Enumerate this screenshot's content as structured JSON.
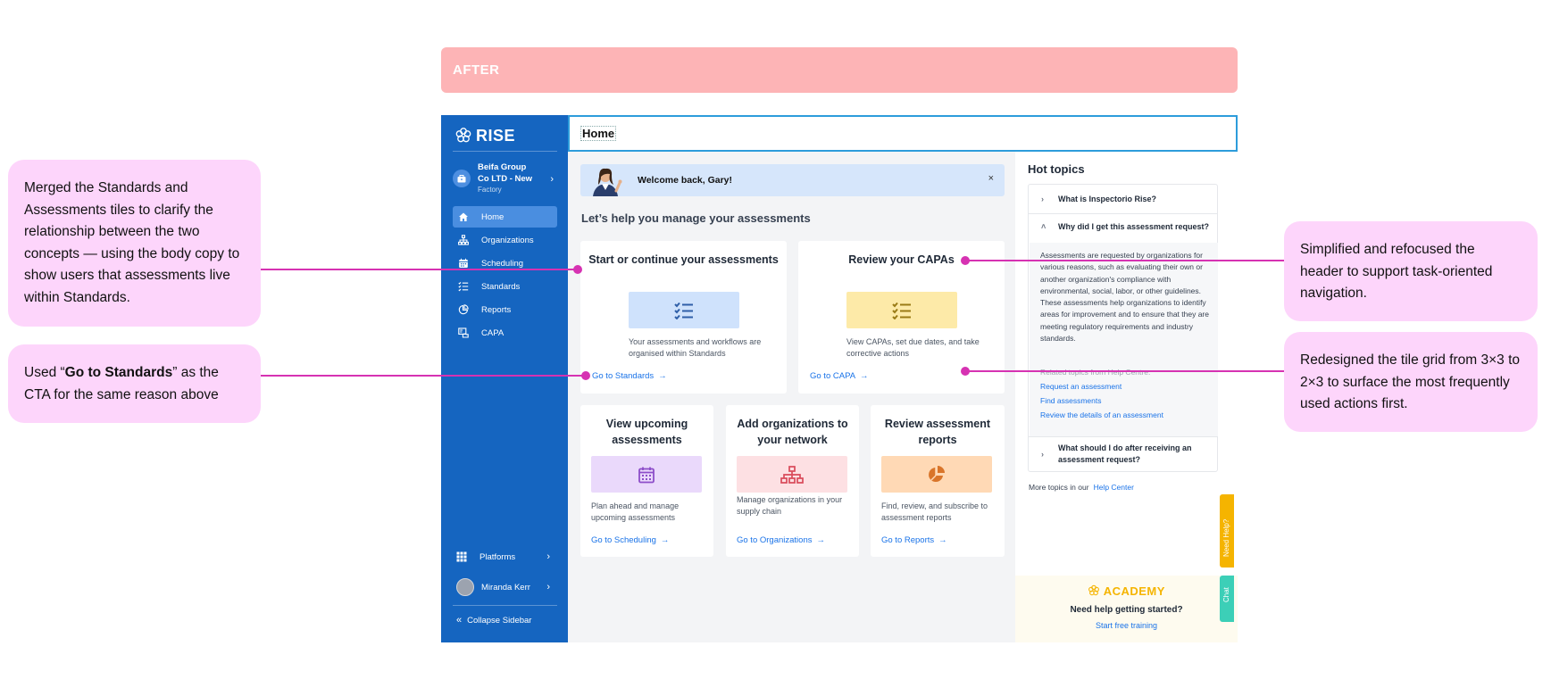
{
  "banner": {
    "label": "AFTER"
  },
  "sidebar": {
    "logo": "RISE",
    "org": {
      "name": "Beifa Group Co LTD - New",
      "type": "Factory"
    },
    "items": [
      {
        "label": "Home",
        "icon": "home-icon"
      },
      {
        "label": "Organizations",
        "icon": "hierarchy-icon"
      },
      {
        "label": "Scheduling",
        "icon": "calendar-icon"
      },
      {
        "label": "Standards",
        "icon": "checklist-icon"
      },
      {
        "label": "Reports",
        "icon": "pie-chart-icon"
      },
      {
        "label": "CAPA",
        "icon": "capa-icon"
      }
    ],
    "platforms": "Platforms",
    "user": "Miranda Kerr",
    "collapse": "Collapse Sidebar"
  },
  "header": {
    "title": "Home"
  },
  "welcome": {
    "text": "Welcome back, Gary!",
    "close": "×"
  },
  "main": {
    "section_title": "Let’s help you manage your assessments",
    "tiles": [
      {
        "title": "Start or continue your assessments",
        "desc": "Your assessments and workflows are organised within Standards",
        "link": "Go to Standards",
        "art_color": "#cfe2fc",
        "icon_color": "#2f5fa8"
      },
      {
        "title": "Review your CAPAs",
        "desc": "View CAPAs, set due dates, and take corrective actions",
        "link": "Go to CAPA",
        "art_color": "#fdeaa8",
        "icon_color": "#9a7b16"
      },
      {
        "title": "View upcoming assessments",
        "desc": "Plan ahead and manage upcoming assessments",
        "link": "Go to Scheduling",
        "art_color": "#ead9fb",
        "icon_color": "#8d4ec9"
      },
      {
        "title": "Add organizations to your network",
        "desc": "Manage organizations in your supply chain",
        "link": "Go to Organizations",
        "art_color": "#fde0e3",
        "icon_color": "#d94a5a"
      },
      {
        "title": "Review assessment reports",
        "desc": "Find, review, and subscribe to assessment reports",
        "link": "Go to Reports",
        "art_color": "#ffd9b5",
        "icon_color": "#d9752a"
      }
    ]
  },
  "hot_topics": {
    "title": "Hot topics",
    "q1": "What is Inspectorio Rise?",
    "q2": "Why did I get this assessment request?",
    "answer": "Assessments are requested by organizations for various reasons, such as evaluating their own or another organization's compliance with environmental, social, labor, or other guidelines. These assessments help organizations to identify areas for improvement and to ensure that they are meeting regulatory requirements and industry standards.",
    "related_label": "Related topics from Help Centre:",
    "related": [
      "Request an assessment",
      "Find assessments",
      "Review the details of an assessment"
    ],
    "q3": "What should I do after receiving an assessment request?",
    "more_prefix": "More topics in our",
    "more_link": "Help Center"
  },
  "academy": {
    "logo": "ACADEMY",
    "question": "Need help getting started?",
    "link": "Start free training"
  },
  "side_tabs": {
    "help": "Need Help?",
    "chat": "Chat"
  },
  "annotations": {
    "left1": "Merged the Standards and Assessments tiles to clarify the relationship between the two concepts — using the body copy to show users that assessments live within Standards.",
    "left2_pre": "Used “",
    "left2_bold": "Go to Standards",
    "left2_post": "” as the CTA for the same reason above",
    "right1": "Simplified and refocused the header to support task-oriented navigation.",
    "right2": "Redesigned the tile grid from 3×3 to 2×3 to surface the most frequently used actions first."
  }
}
